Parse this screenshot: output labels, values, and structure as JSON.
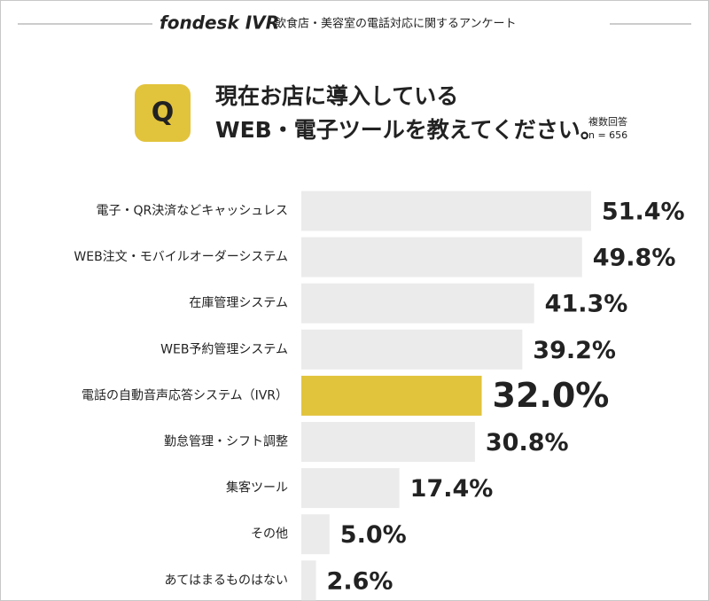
{
  "header": {
    "logo": "fondesk IVR",
    "subtitle": "飲食店・美容室の電話対応に関するアンケート"
  },
  "chart_data": {
    "type": "bar",
    "orientation": "horizontal",
    "badge": "Q",
    "title_lines": [
      "現在お店に導入している",
      "WEB・電子ツールを教えてください。"
    ],
    "note": "複数回答",
    "sample": "n = 656",
    "categories": [
      "電子・QR決済などキャッシュレス",
      "WEB注文・モバイルオーダーシステム",
      "在庫管理システム",
      "WEB予約管理システム",
      "電話の自動音声応答システム（IVR）",
      "勤怠管理・シフト調整",
      "集客ツール",
      "その他",
      "あてはまるものはない"
    ],
    "values": [
      51.4,
      49.8,
      41.3,
      39.2,
      32.0,
      30.8,
      17.4,
      5.0,
      2.6
    ],
    "value_labels": [
      "51.4%",
      "49.8%",
      "41.3%",
      "39.2%",
      "32.0%",
      "30.8%",
      "17.4%",
      "5.0%",
      "2.6%"
    ],
    "colors": [
      "#ebebeb",
      "#ebebeb",
      "#ebebeb",
      "#ebebeb",
      "#e2c33c",
      "#ebebeb",
      "#ebebeb",
      "#ebebeb",
      "#ebebeb"
    ],
    "highlight_index": 4
  }
}
